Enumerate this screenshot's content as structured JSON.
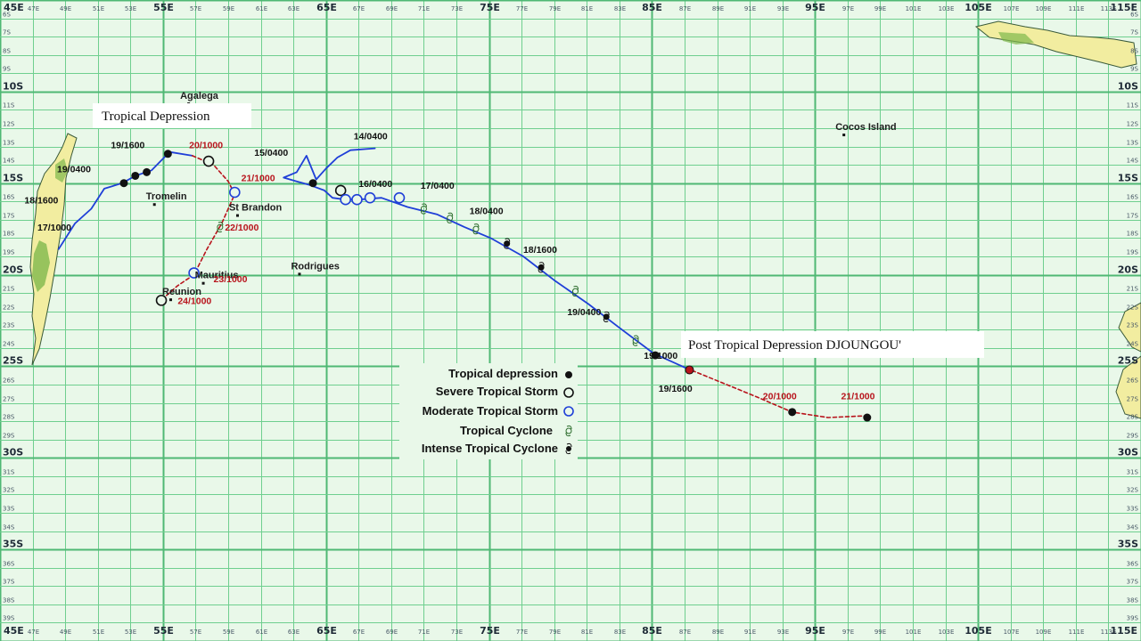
{
  "title_boxes": {
    "left": "Tropical Depression",
    "right": "Post Tropical Depression DJOUNGOU'"
  },
  "places": [
    {
      "name": "Agalega",
      "lon": 56.6,
      "lat": -10.4
    },
    {
      "name": "Tromelin",
      "lon": 54.5,
      "lat": -15.9
    },
    {
      "name": "St Brandon",
      "lon": 59.6,
      "lat": -16.5
    },
    {
      "name": "Mauritius",
      "lon": 57.5,
      "lat": -20.2
    },
    {
      "name": "Reunion",
      "lon": 55.5,
      "lat": -21.1
    },
    {
      "name": "Rodrigues",
      "lon": 63.4,
      "lat": -19.7
    },
    {
      "name": "Cocos Island",
      "lon": 96.8,
      "lat": -12.1
    }
  ],
  "legend": [
    {
      "label": "Tropical depression",
      "symbol": "filled-dot"
    },
    {
      "label": "Severe Tropical Storm",
      "symbol": "open-circle-black"
    },
    {
      "label": "Moderate Tropical Storm",
      "symbol": "open-circle-blue"
    },
    {
      "label": "Tropical Cyclone",
      "symbol": "cyclone-open"
    },
    {
      "label": "Intense Tropical Cyclone",
      "symbol": "cyclone-filled"
    }
  ],
  "axes": {
    "lon_major": [
      "45E",
      "55E",
      "65E",
      "75E",
      "85E",
      "95E",
      "105E",
      "115E"
    ],
    "lat_major": [
      "10S",
      "15S",
      "20S",
      "25S",
      "30S",
      "35S"
    ],
    "lon_range": [
      45,
      115
    ],
    "lat_range": [
      -5,
      -40
    ]
  },
  "tracks": [
    {
      "name": "west-track-blue",
      "style": "solid-blue",
      "color": "#1f3fd8",
      "points": [
        [
          48.6,
          -18.6
        ],
        [
          49.6,
          -17.2
        ],
        [
          50.6,
          -16.4
        ],
        [
          51.4,
          -15.3
        ],
        [
          52.5,
          -15.0
        ],
        [
          53.3,
          -14.6
        ],
        [
          54.3,
          -14.3
        ],
        [
          55.4,
          -13.3
        ],
        [
          56.8,
          -13.5
        ]
      ]
    },
    {
      "name": "west-track-red",
      "style": "dashed-red",
      "color": "#b8141c",
      "points": [
        [
          56.8,
          -13.5
        ],
        [
          58.1,
          -14.0
        ],
        [
          59.0,
          -14.9
        ],
        [
          59.4,
          -15.6
        ],
        [
          58.6,
          -17.2
        ],
        [
          57.7,
          -18.6
        ],
        [
          56.9,
          -20.0
        ],
        [
          55.9,
          -20.6
        ],
        [
          55.0,
          -21.3
        ]
      ]
    },
    {
      "name": "east-track-loop",
      "style": "solid-blue",
      "color": "#1f3fd8",
      "points": [
        [
          68.0,
          -13.1
        ],
        [
          66.5,
          -13.2
        ],
        [
          65.7,
          -13.6
        ],
        [
          65.0,
          -14.2
        ],
        [
          64.4,
          -14.8
        ],
        [
          63.8,
          -13.5
        ],
        [
          63.2,
          -14.4
        ],
        [
          62.4,
          -14.7
        ],
        [
          63.2,
          -14.9
        ],
        [
          64.0,
          -15.1
        ],
        [
          64.9,
          -15.4
        ],
        [
          65.4,
          -15.8
        ],
        [
          66.2,
          -15.9
        ],
        [
          67.0,
          -15.9
        ],
        [
          68.4,
          -15.8
        ],
        [
          70.0,
          -16.3
        ],
        [
          71.8,
          -16.7
        ],
        [
          73.5,
          -17.4
        ],
        [
          75.1,
          -18.0
        ],
        [
          77.1,
          -19.0
        ],
        [
          79.0,
          -20.3
        ],
        [
          81.1,
          -21.6
        ],
        [
          83.0,
          -22.9
        ],
        [
          85.1,
          -24.3
        ],
        [
          87.1,
          -25.1
        ]
      ]
    },
    {
      "name": "east-track-red",
      "style": "dashed-red",
      "color": "#b8141c",
      "points": [
        [
          87.1,
          -25.1
        ],
        [
          89.3,
          -25.9
        ],
        [
          91.5,
          -26.7
        ],
        [
          93.6,
          -27.5
        ],
        [
          95.8,
          -27.8
        ],
        [
          98.2,
          -27.7
        ]
      ]
    }
  ],
  "markers": [
    {
      "type": "filled-dot",
      "lon": 52.6,
      "lat": -15.0
    },
    {
      "type": "filled-dot",
      "lon": 53.3,
      "lat": -14.6
    },
    {
      "type": "filled-dot",
      "lon": 54.0,
      "lat": -14.4
    },
    {
      "type": "filled-dot",
      "lon": 55.3,
      "lat": -13.4
    },
    {
      "type": "open-circle-black",
      "lon": 57.8,
      "lat": -13.8
    },
    {
      "type": "open-circle-blue",
      "lon": 59.4,
      "lat": -15.5
    },
    {
      "type": "cyclone-open",
      "lon": 58.5,
      "lat": -17.4
    },
    {
      "type": "open-circle-blue",
      "lon": 56.9,
      "lat": -19.9
    },
    {
      "type": "open-circle-black",
      "lon": 54.9,
      "lat": -21.4
    },
    {
      "type": "filled-dot",
      "lon": 64.2,
      "lat": -15.0
    },
    {
      "type": "open-circle-black",
      "lon": 65.9,
      "lat": -15.4
    },
    {
      "type": "open-circle-blue",
      "lon": 66.2,
      "lat": -15.9
    },
    {
      "type": "open-circle-blue",
      "lon": 66.9,
      "lat": -15.9
    },
    {
      "type": "open-circle-blue",
      "lon": 67.7,
      "lat": -15.8
    },
    {
      "type": "open-circle-blue",
      "lon": 69.5,
      "lat": -15.8
    },
    {
      "type": "cyclone-open",
      "lon": 71.0,
      "lat": -16.4
    },
    {
      "type": "cyclone-open",
      "lon": 72.6,
      "lat": -16.9
    },
    {
      "type": "cyclone-open",
      "lon": 74.2,
      "lat": -17.5
    },
    {
      "type": "cyclone-filled",
      "lon": 76.1,
      "lat": -18.3
    },
    {
      "type": "cyclone-filled",
      "lon": 78.2,
      "lat": -19.6
    },
    {
      "type": "cyclone-open",
      "lon": 80.3,
      "lat": -20.9
    },
    {
      "type": "cyclone-filled",
      "lon": 82.2,
      "lat": -22.3
    },
    {
      "type": "cyclone-open",
      "lon": 84.0,
      "lat": -23.6
    },
    {
      "type": "filled-dot",
      "lon": 85.2,
      "lat": -24.4
    },
    {
      "type": "filled-red-dot",
      "lon": 87.3,
      "lat": -25.2
    },
    {
      "type": "filled-dot",
      "lon": 93.6,
      "lat": -27.5
    },
    {
      "type": "filled-dot",
      "lon": 98.2,
      "lat": -27.8
    }
  ],
  "track_labels": [
    {
      "text": "17/1000",
      "lon": 47.3,
      "lat": -17.6,
      "color": "black"
    },
    {
      "text": "18/1600",
      "lon": 46.5,
      "lat": -16.1,
      "color": "black"
    },
    {
      "text": "19/0400",
      "lon": 48.5,
      "lat": -14.4,
      "color": "black"
    },
    {
      "text": "19/1600",
      "lon": 51.8,
      "lat": -13.1,
      "color": "black"
    },
    {
      "text": "20/1000",
      "lon": 56.6,
      "lat": -13.1,
      "color": "red"
    },
    {
      "text": "21/1000",
      "lon": 59.8,
      "lat": -14.9,
      "color": "red"
    },
    {
      "text": "22/1000",
      "lon": 58.8,
      "lat": -17.6,
      "color": "red"
    },
    {
      "text": "23/1000",
      "lon": 58.1,
      "lat": -20.4,
      "color": "red"
    },
    {
      "text": "24/1000",
      "lon": 55.9,
      "lat": -21.6,
      "color": "red"
    },
    {
      "text": "15/0400",
      "lon": 60.6,
      "lat": -13.5,
      "color": "black"
    },
    {
      "text": "14/0400",
      "lon": 66.7,
      "lat": -12.6,
      "color": "black"
    },
    {
      "text": "16/0400",
      "lon": 67.0,
      "lat": -15.2,
      "color": "black"
    },
    {
      "text": "17/0400",
      "lon": 70.8,
      "lat": -15.3,
      "color": "black"
    },
    {
      "text": "18/0400",
      "lon": 73.8,
      "lat": -16.7,
      "color": "black"
    },
    {
      "text": "18/1600",
      "lon": 77.1,
      "lat": -18.8,
      "color": "black"
    },
    {
      "text": "19/0400",
      "lon": 79.8,
      "lat": -22.2,
      "color": "black"
    },
    {
      "text": "19/1000",
      "lon": 84.5,
      "lat": -24.6,
      "color": "black"
    },
    {
      "text": "19/1600",
      "lon": 85.4,
      "lat": -26.4,
      "color": "black"
    },
    {
      "text": "20/1000",
      "lon": 91.8,
      "lat": -26.8,
      "color": "red"
    },
    {
      "text": "21/1000",
      "lon": 96.6,
      "lat": -26.8,
      "color": "red"
    }
  ],
  "colors": {
    "ocean": "#e9f8e9",
    "grid": "#6fcf8f",
    "track_blue": "#1f3fd8",
    "track_red": "#b8141c",
    "land": "#f2eda0",
    "land_dark": "#7fb84c"
  }
}
